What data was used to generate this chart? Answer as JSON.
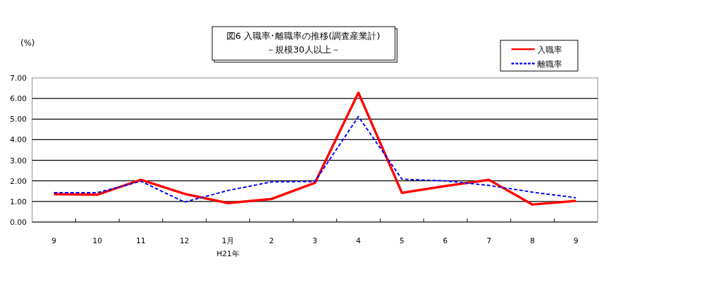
{
  "chart_data": {
    "type": "line",
    "title": "図6 入職率･離職率の推移(調査産業計)",
    "subtitle": "－規模30人以上－",
    "ylabel": "(%)",
    "categories": [
      "9",
      "10",
      "11",
      "12",
      "1月\nH21年",
      "2",
      "3",
      "4",
      "5",
      "6",
      "7",
      "8",
      "9"
    ],
    "series": [
      {
        "name": "入職率",
        "color": "#ff0000",
        "line_style": "solid",
        "values": [
          1.35,
          1.33,
          2.05,
          1.37,
          0.92,
          1.12,
          1.9,
          6.28,
          1.42,
          1.75,
          2.05,
          0.85,
          1.03
        ]
      },
      {
        "name": "離職率",
        "color": "#0000ff",
        "line_style": "dashed",
        "values": [
          1.43,
          1.43,
          1.98,
          0.97,
          1.53,
          1.95,
          1.97,
          5.12,
          2.08,
          2.0,
          1.78,
          1.45,
          1.18
        ]
      }
    ],
    "ylim": [
      0,
      7
    ],
    "yticks": [
      {
        "value": 0,
        "label": "0.00"
      },
      {
        "value": 1,
        "label": "1.00"
      },
      {
        "value": 2,
        "label": "2.00"
      },
      {
        "value": 3,
        "label": "3.00"
      },
      {
        "value": 4,
        "label": "4.00"
      },
      {
        "value": 5,
        "label": "5.00"
      },
      {
        "value": 6,
        "label": "6.00"
      },
      {
        "value": 7,
        "label": "7.00"
      }
    ],
    "grid": "y",
    "legend": "top right",
    "marker": "none"
  }
}
